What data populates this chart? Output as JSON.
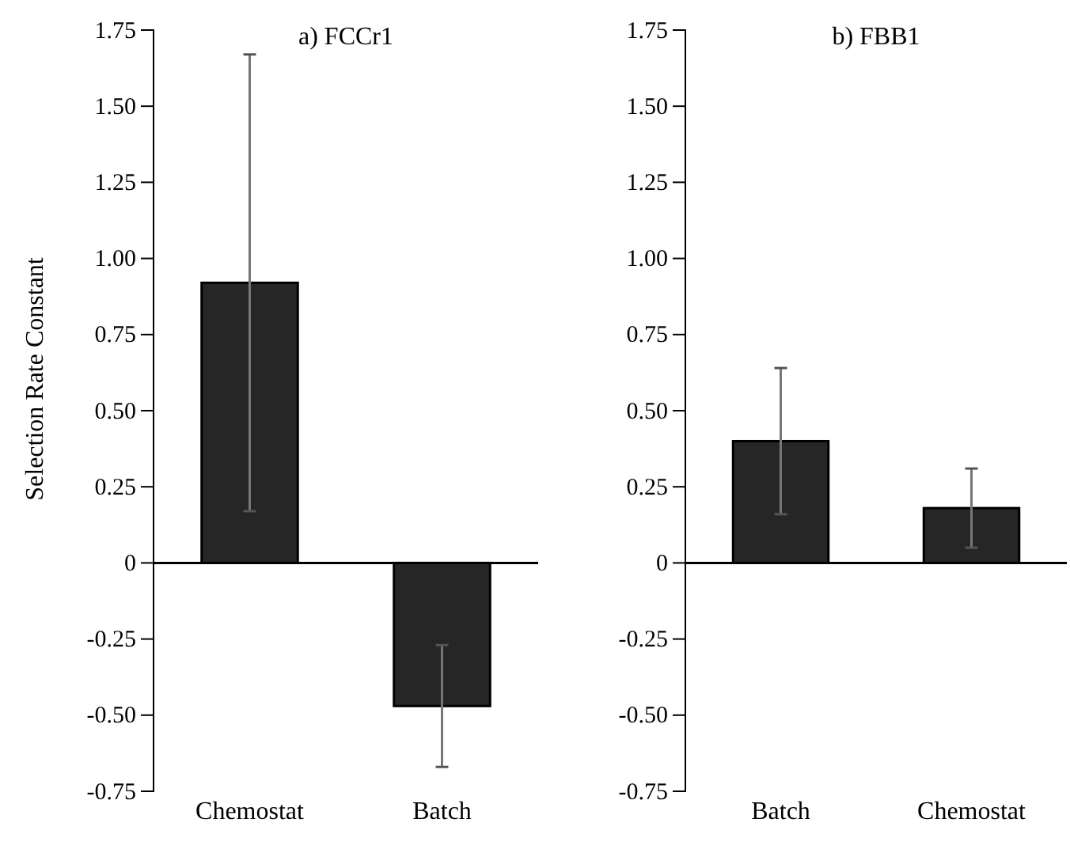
{
  "chart_data": [
    {
      "type": "bar",
      "title": "a)  FCCr1",
      "ylabel": "Selection Rate Constant",
      "categories": [
        "Chemostat",
        "Batch"
      ],
      "values": [
        0.92,
        -0.47
      ],
      "errors": [
        0.75,
        0.2
      ],
      "color": "#262626",
      "ylim": [
        -0.75,
        1.75
      ],
      "yticks": [
        {
          "value": -0.75,
          "label": "-0.75"
        },
        {
          "value": -0.5,
          "label": "-0.50"
        },
        {
          "value": -0.25,
          "label": "-0.25"
        },
        0,
        {
          "value": 0.25,
          "label": "0.25"
        },
        {
          "value": 0.5,
          "label": "0.50"
        },
        {
          "value": 0.75,
          "label": "0.75"
        },
        {
          "value": 1,
          "label": "1.00"
        },
        {
          "value": 1.25,
          "label": "1.25"
        },
        {
          "value": 1.5,
          "label": "1.50"
        },
        {
          "value": 1.75,
          "label": "1.75"
        }
      ]
    },
    {
      "type": "bar",
      "title": "b)  FBB1",
      "categories": [
        "Batch",
        "Chemostat"
      ],
      "values": [
        0.4,
        0.18
      ],
      "errors": [
        0.24,
        0.13
      ],
      "color": "#262626",
      "ylim": [
        -0.75,
        1.75
      ],
      "yticks": [
        {
          "value": -0.75,
          "label": "-0.75"
        },
        {
          "value": -0.5,
          "label": "-0.50"
        },
        {
          "value": -0.25,
          "label": "-0.25"
        },
        0,
        {
          "value": 0.25,
          "label": "0.25"
        },
        {
          "value": 0.5,
          "label": "0.50"
        },
        {
          "value": 0.75,
          "label": "0.75"
        },
        {
          "value": 1,
          "label": "1.00"
        },
        {
          "value": 1.25,
          "label": "1.25"
        },
        {
          "value": 1.5,
          "label": "1.50"
        },
        {
          "value": 1.75,
          "label": "1.75"
        }
      ]
    }
  ]
}
